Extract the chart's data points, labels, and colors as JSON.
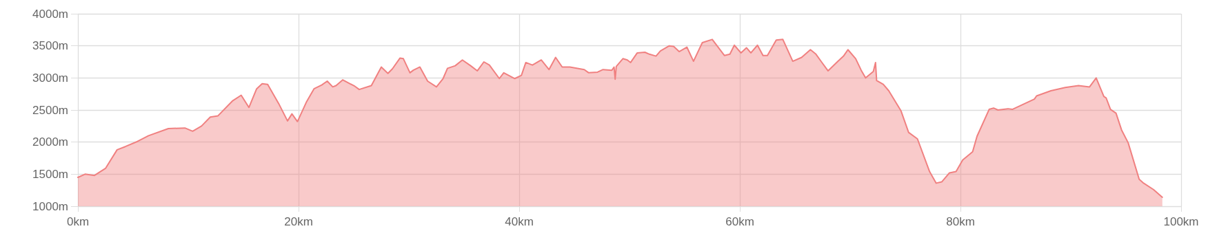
{
  "chart_data": {
    "type": "area",
    "grid": true,
    "line_style": "solid",
    "xlim": [
      0,
      100
    ],
    "xticks": [
      {
        "value": 0,
        "label": "0km"
      },
      {
        "value": 20,
        "label": "20km"
      },
      {
        "value": 40,
        "label": "40km"
      },
      {
        "value": 60,
        "label": "60km"
      },
      {
        "value": 80,
        "label": "80km"
      },
      {
        "value": 100,
        "label": "100km"
      }
    ],
    "ylim": [
      1000,
      4000
    ],
    "yticks": [
      {
        "value": 1000,
        "label": "1000m"
      },
      {
        "value": 1500,
        "label": "1500m"
      },
      {
        "value": 2000,
        "label": "2000m"
      },
      {
        "value": 2500,
        "label": "2500m"
      },
      {
        "value": 3000,
        "label": "3000m"
      },
      {
        "value": 3500,
        "label": "3500m"
      },
      {
        "value": 4000,
        "label": "4000m"
      }
    ],
    "series": [
      {
        "color": "#f08080",
        "x": [
          0,
          0.65,
          1.5,
          2.5,
          3.55,
          4.3,
          5.4,
          6.4,
          8.2,
          9.7,
          10.4,
          11.2,
          12,
          12.7,
          14,
          14.8,
          15.5,
          16.2,
          16.7,
          17.2,
          18.2,
          19,
          19.4,
          19.9,
          20.7,
          21.4,
          22.1,
          22.6,
          23.1,
          23.4,
          24,
          25.1,
          25.5,
          26.6,
          27.5,
          28.1,
          28.5,
          29.2,
          29.5,
          30.1,
          30.4,
          31,
          31.7,
          32.5,
          33.1,
          33.5,
          34.2,
          34.85,
          35.6,
          36.2,
          36.8,
          37.3,
          38.2,
          38.6,
          39.6,
          40.2,
          40.6,
          41.2,
          42,
          42.7,
          43.3,
          43.9,
          44.6,
          45.9,
          46.3,
          47.1,
          47.6,
          48.4,
          48.6,
          48.7,
          48.8,
          49.4,
          49.8,
          50.1,
          50.7,
          51.4,
          51.8,
          52.4,
          52.8,
          53.6,
          54,
          54.5,
          55.2,
          55.8,
          56.6,
          57.5,
          58.6,
          59.1,
          59.5,
          60.1,
          60.6,
          61,
          61.6,
          62.1,
          62.5,
          63.3,
          63.9,
          64.8,
          65.6,
          66.4,
          66.9,
          67.4,
          68,
          68.9,
          69.4,
          69.8,
          70.5,
          71,
          71.4,
          72.1,
          72.3,
          72.4,
          73,
          73.5,
          74.6,
          75.3,
          76.1,
          77.2,
          77.8,
          78.3,
          79,
          79.6,
          80.2,
          81.1,
          81.5,
          82.6,
          83,
          83.4,
          84.3,
          84.7,
          86.7,
          86.9,
          88.2,
          89.5,
          90.7,
          91.7,
          92.3,
          93,
          93.2,
          93.6,
          94.1,
          94.6,
          95.2,
          96.2,
          96.6,
          97.5,
          98.3
        ],
        "values": [
          1450,
          1500,
          1480,
          1590,
          1880,
          1930,
          2010,
          2100,
          2210,
          2220,
          2170,
          2250,
          2390,
          2410,
          2640,
          2730,
          2540,
          2830,
          2910,
          2900,
          2600,
          2330,
          2440,
          2320,
          2620,
          2830,
          2890,
          2950,
          2860,
          2880,
          2970,
          2870,
          2820,
          2880,
          3170,
          3070,
          3140,
          3310,
          3300,
          3080,
          3120,
          3170,
          2950,
          2860,
          2990,
          3150,
          3190,
          3280,
          3190,
          3110,
          3250,
          3200,
          2990,
          3080,
          2990,
          3040,
          3240,
          3200,
          3280,
          3130,
          3320,
          3170,
          3170,
          3130,
          3080,
          3090,
          3130,
          3120,
          3170,
          2980,
          3180,
          3300,
          3280,
          3240,
          3390,
          3400,
          3370,
          3340,
          3420,
          3500,
          3490,
          3410,
          3480,
          3260,
          3550,
          3600,
          3350,
          3370,
          3510,
          3390,
          3470,
          3390,
          3510,
          3350,
          3350,
          3590,
          3600,
          3260,
          3320,
          3440,
          3370,
          3250,
          3110,
          3260,
          3340,
          3440,
          3300,
          3120,
          3000,
          3100,
          3240,
          2960,
          2900,
          2800,
          2490,
          2150,
          2050,
          1540,
          1360,
          1380,
          1520,
          1540,
          1720,
          1850,
          2090,
          2510,
          2530,
          2500,
          2520,
          2510,
          2670,
          2720,
          2800,
          2850,
          2880,
          2860,
          3000,
          2710,
          2690,
          2510,
          2450,
          2190,
          1990,
          1420,
          1360,
          1260,
          1140
        ]
      }
    ]
  }
}
